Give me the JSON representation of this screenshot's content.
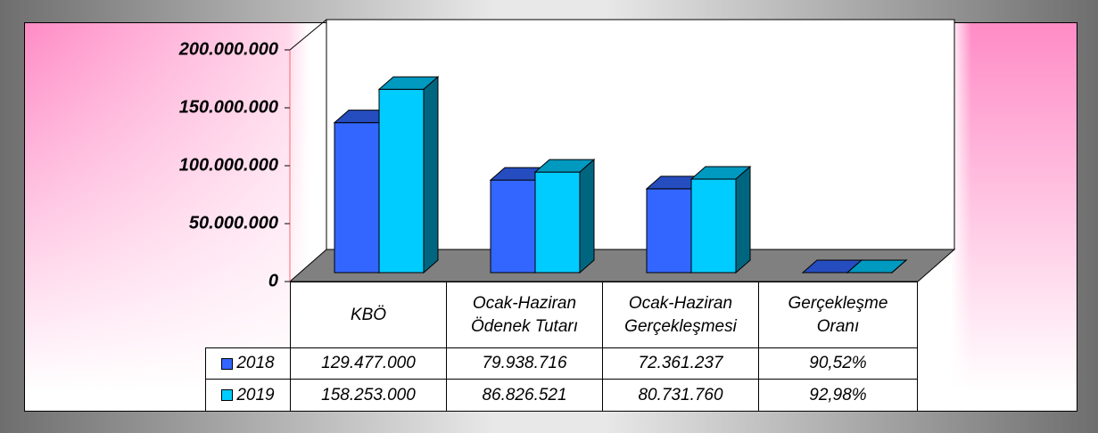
{
  "chart_data": {
    "type": "bar3d",
    "categories": [
      "KBÖ",
      "Ocak-Haziran Ödenek Tutarı",
      "Ocak-Haziran Gerçekleşmesi",
      "Gerçekleşme Oranı"
    ],
    "series": [
      {
        "name": "2018",
        "color": "#3366ff",
        "values": [
          129477000,
          79938716,
          72361237,
          90.52
        ],
        "value_labels": [
          "129.477.000",
          "79.938.716",
          "72.361.237",
          "90,52%"
        ]
      },
      {
        "name": "2019",
        "color": "#00ccff",
        "values": [
          158253000,
          86826521,
          80731760,
          92.98
        ],
        "value_labels": [
          "158.253.000",
          "86.826.521",
          "80.731.760",
          "92,98%"
        ]
      }
    ],
    "ylim": [
      0,
      200000000
    ],
    "yticks": [
      0,
      {
        "value": 50000000,
        "label": "50.000.000"
      },
      {
        "value": 100000000,
        "label": "100.000.000"
      },
      {
        "value": 150000000,
        "label": "150.000.000"
      },
      {
        "value": 200000000,
        "label": "200.000.000"
      }
    ]
  }
}
